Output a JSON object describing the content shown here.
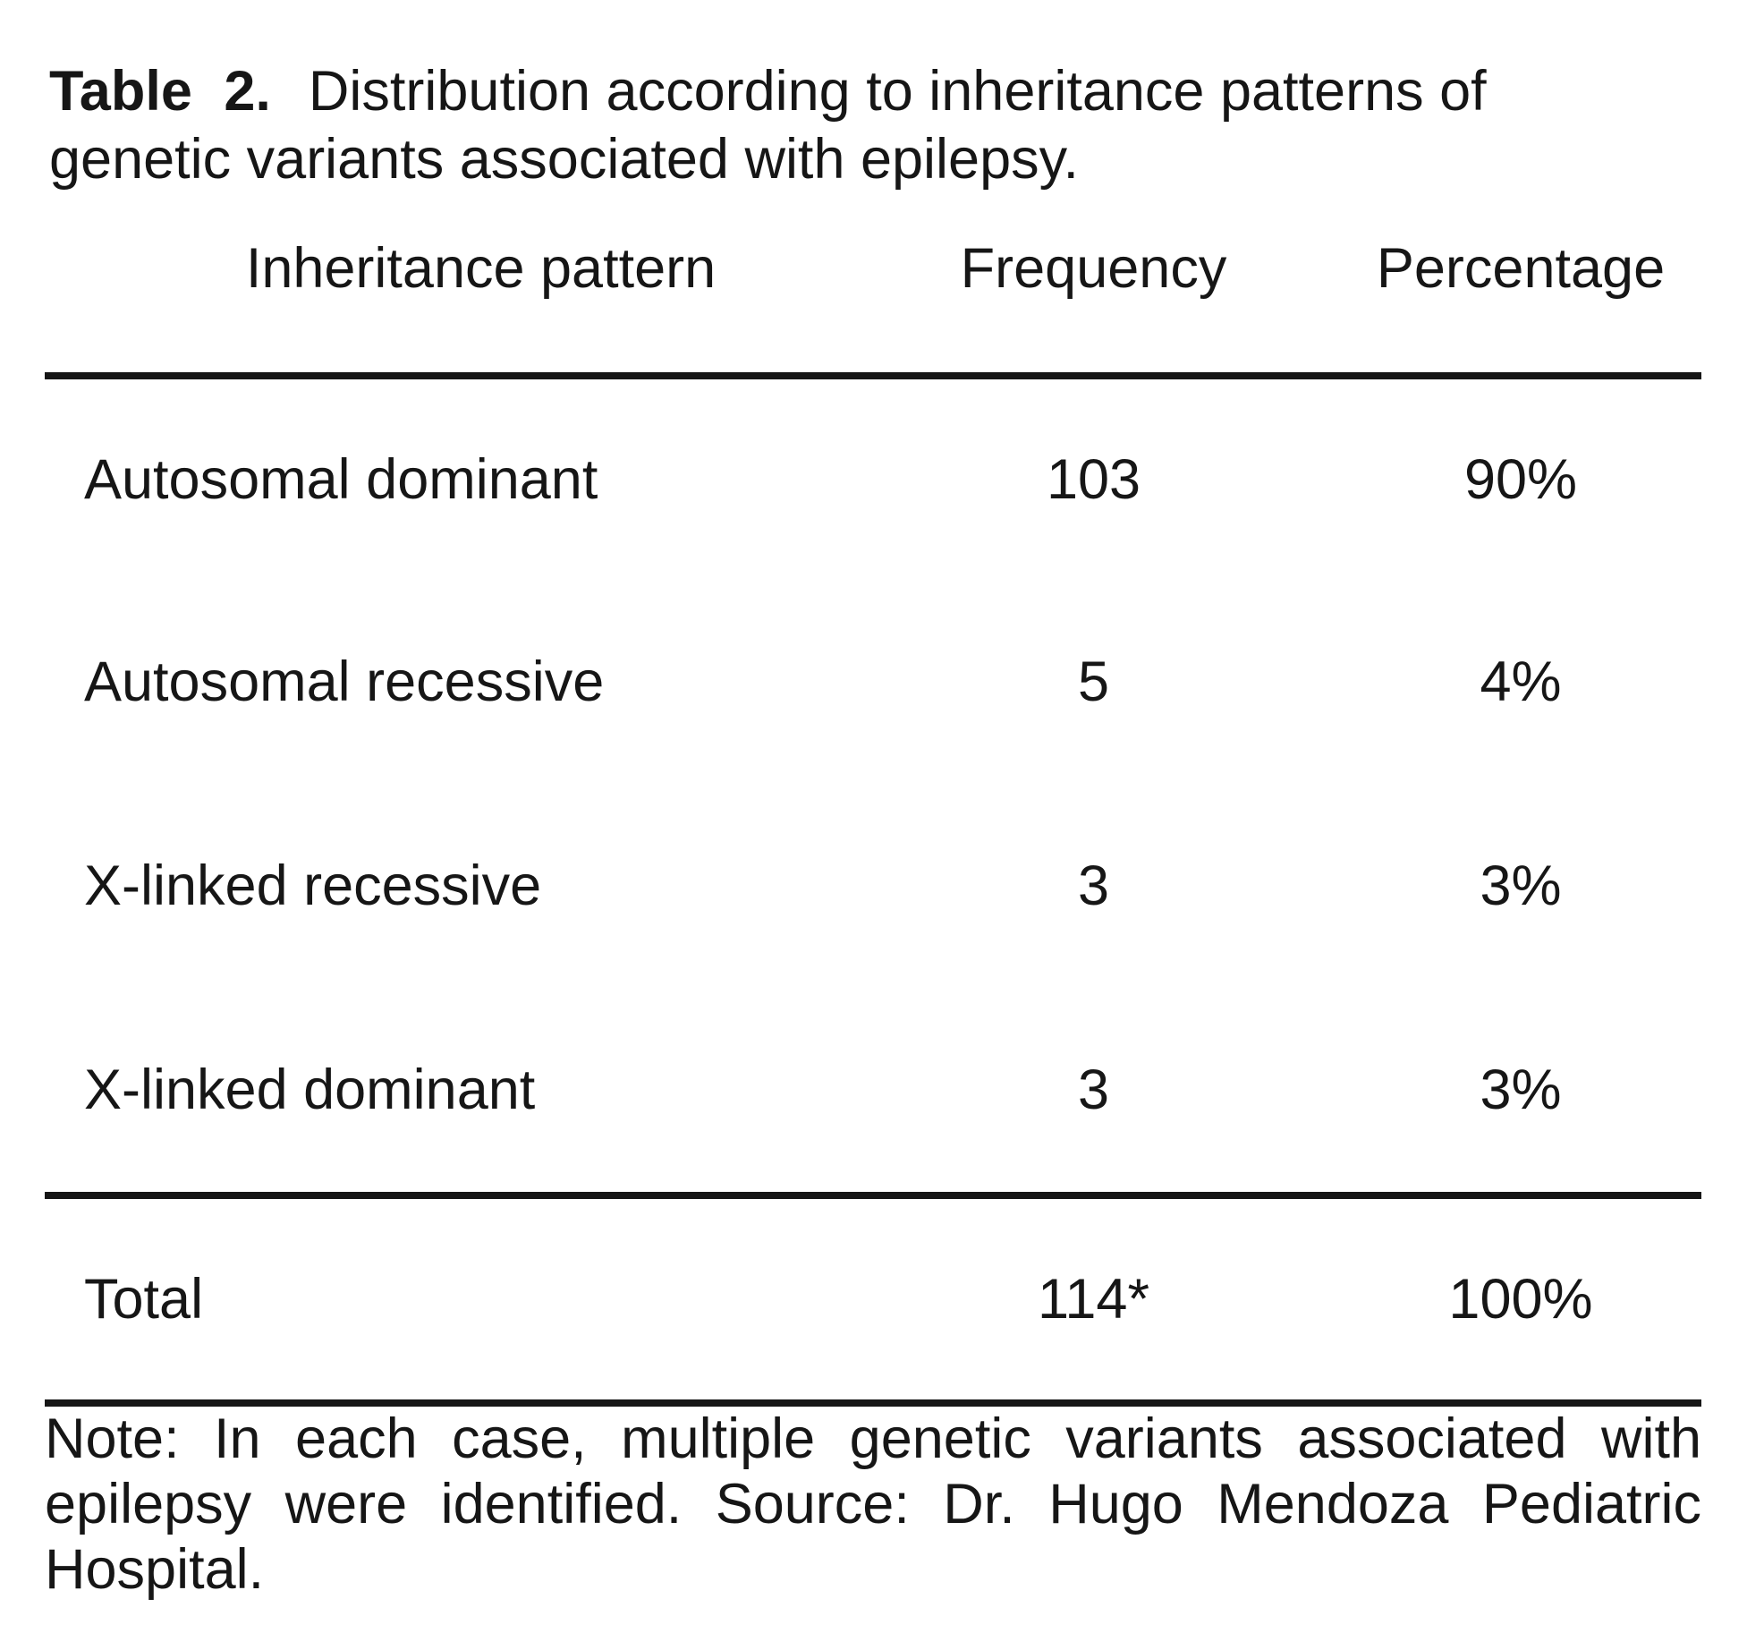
{
  "document": {
    "title": {
      "label": "Table 2.",
      "line1": "Distribution according to inheritance patterns of",
      "line2": "genetic variants associated with epilepsy."
    },
    "table": {
      "columns": [
        "Inheritance pattern",
        "Frequency",
        "Percentage"
      ],
      "rows": [
        {
          "pattern": "Autosomal dominant",
          "frequency": "103",
          "percentage": "90%"
        },
        {
          "pattern": "Autosomal recessive",
          "frequency": "5",
          "percentage": "4%"
        },
        {
          "pattern": "X-linked recessive",
          "frequency": "3",
          "percentage": "3%"
        },
        {
          "pattern": "X-linked dominant",
          "frequency": "3",
          "percentage": "3%"
        }
      ],
      "total": {
        "label": "Total",
        "frequency": "114*",
        "percentage": "100%"
      }
    },
    "note": {
      "lines": [
        "Note: In each case, multiple genetic variants associated with",
        "epilepsy were identified. Source: Dr. Hugo Mendoza Pediatric",
        "Hospital."
      ]
    },
    "colors": {
      "text": "#161616",
      "rule": "#161616",
      "background": "#ffffff"
    }
  }
}
